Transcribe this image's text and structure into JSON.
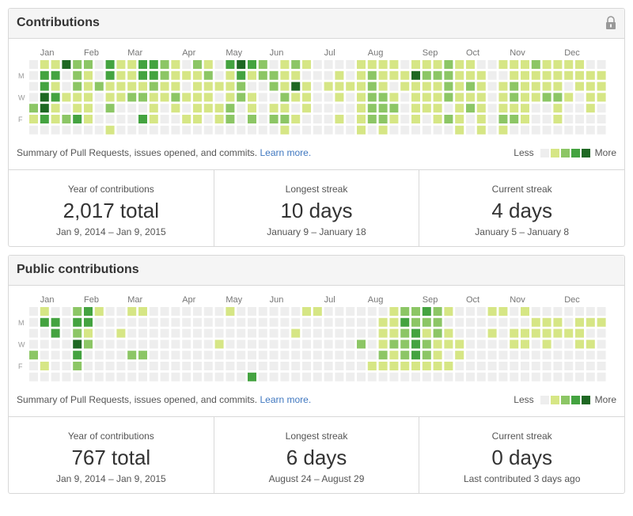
{
  "colors": {
    "level0": "#eeeeee",
    "level1": "#d6e685",
    "level2": "#8cc665",
    "level3": "#44a340",
    "level4": "#1e6823",
    "link": "#4078c0"
  },
  "panels": [
    {
      "title": "Contributions",
      "has_lock": true,
      "lock_icon": "lock-icon",
      "months": [
        {
          "label": "Jan",
          "week": 1
        },
        {
          "label": "Feb",
          "week": 5
        },
        {
          "label": "Mar",
          "week": 9
        },
        {
          "label": "Apr",
          "week": 14
        },
        {
          "label": "May",
          "week": 18
        },
        {
          "label": "Jun",
          "week": 22
        },
        {
          "label": "Jul",
          "week": 27
        },
        {
          "label": "Aug",
          "week": 31
        },
        {
          "label": "Sep",
          "week": 36
        },
        {
          "label": "Oct",
          "week": 40
        },
        {
          "label": "Nov",
          "week": 44
        },
        {
          "label": "Dec",
          "week": 49
        }
      ],
      "days": [
        "M",
        "W",
        "F"
      ],
      "summary": "Summary of Pull Requests, issues opened, and commits.",
      "learn_more": "Learn more.",
      "legend_less": "Less",
      "legend_more": "More",
      "stats": [
        {
          "label": "Year of contributions",
          "value": "2,017 total",
          "range": "Jan 9, 2014 – Jan 9, 2015"
        },
        {
          "label": "Longest streak",
          "value": "10 days",
          "range": "January 9 – January 18"
        },
        {
          "label": "Current streak",
          "value": "4 days",
          "range": "January 5 – January 8"
        }
      ],
      "weeks": [
        "0000210",
        "1334430",
        "1313110",
        "4001020",
        "2221130",
        "2111110",
        "0020000",
        "3311201",
        "1111000",
        "1112000",
        "3312030",
        "3321110",
        "2211000",
        "1112100",
        "0101010",
        "2111110",
        "1211100",
        "0010110",
        "3111220",
        "4322000",
        "3101120",
        "2200000",
        "0220120",
        "1112121",
        "2141010",
        "1011100",
        "0000000",
        "0010000",
        "0111010",
        "0010000",
        "1111111",
        "1222220",
        "1112221",
        "1101210",
        "0110000",
        "1411110",
        "1211100",
        "1211110",
        "2222020",
        "1111111",
        "1121200",
        "0111111",
        "0000000",
        "1011121",
        "1122120",
        "1111110",
        "2111000",
        "1112000",
        "1112110",
        "1101000",
        "1110000",
        "0111100",
        "0111000"
      ]
    },
    {
      "title": "Public contributions",
      "has_lock": false,
      "months": [
        {
          "label": "Jan",
          "week": 1
        },
        {
          "label": "Feb",
          "week": 5
        },
        {
          "label": "Mar",
          "week": 9
        },
        {
          "label": "Apr",
          "week": 14
        },
        {
          "label": "May",
          "week": 18
        },
        {
          "label": "Jun",
          "week": 22
        },
        {
          "label": "Jul",
          "week": 27
        },
        {
          "label": "Aug",
          "week": 31
        },
        {
          "label": "Sep",
          "week": 36
        },
        {
          "label": "Oct",
          "week": 40
        },
        {
          "label": "Nov",
          "week": 44
        },
        {
          "label": "Dec",
          "week": 49
        }
      ],
      "days": [
        "M",
        "W",
        "F"
      ],
      "summary": "Summary of Pull Requests, issues opened, and commits.",
      "learn_more": "Learn more.",
      "legend_less": "Less",
      "legend_more": "More",
      "stats": [
        {
          "label": "Year of contributions",
          "value": "767 total",
          "range": "Jan 9, 2014 – Jan 9, 2015"
        },
        {
          "label": "Longest streak",
          "value": "6 days",
          "range": "August 24 – August 29"
        },
        {
          "label": "Current streak",
          "value": "0 days",
          "range": "Last contributed 3 days ago"
        }
      ],
      "weeks": [
        "0000200",
        "1300010",
        "0330000",
        "0000000",
        "2324320",
        "3312000",
        "1000000",
        "0000000",
        "0010000",
        "1000200",
        "1000200",
        "0000000",
        "0000000",
        "0000000",
        "0000000",
        "0000000",
        "0000000",
        "0001000",
        "1000000",
        "0000000",
        "0000003",
        "0000000",
        "0000000",
        "0000000",
        "0010000",
        "1000000",
        "1000000",
        "0000000",
        "0000000",
        "0000000",
        "0002000",
        "0000010",
        "0111210",
        "1112110",
        "2322210",
        "2233310",
        "3212210",
        "2221110",
        "1011010",
        "0001100",
        "0000000",
        "0000000",
        "1010000",
        "1000000",
        "0011000",
        "1011000",
        "0110000",
        "0111000",
        "0110000",
        "0010000",
        "0111000",
        "0101000",
        "0100000"
      ]
    }
  ]
}
